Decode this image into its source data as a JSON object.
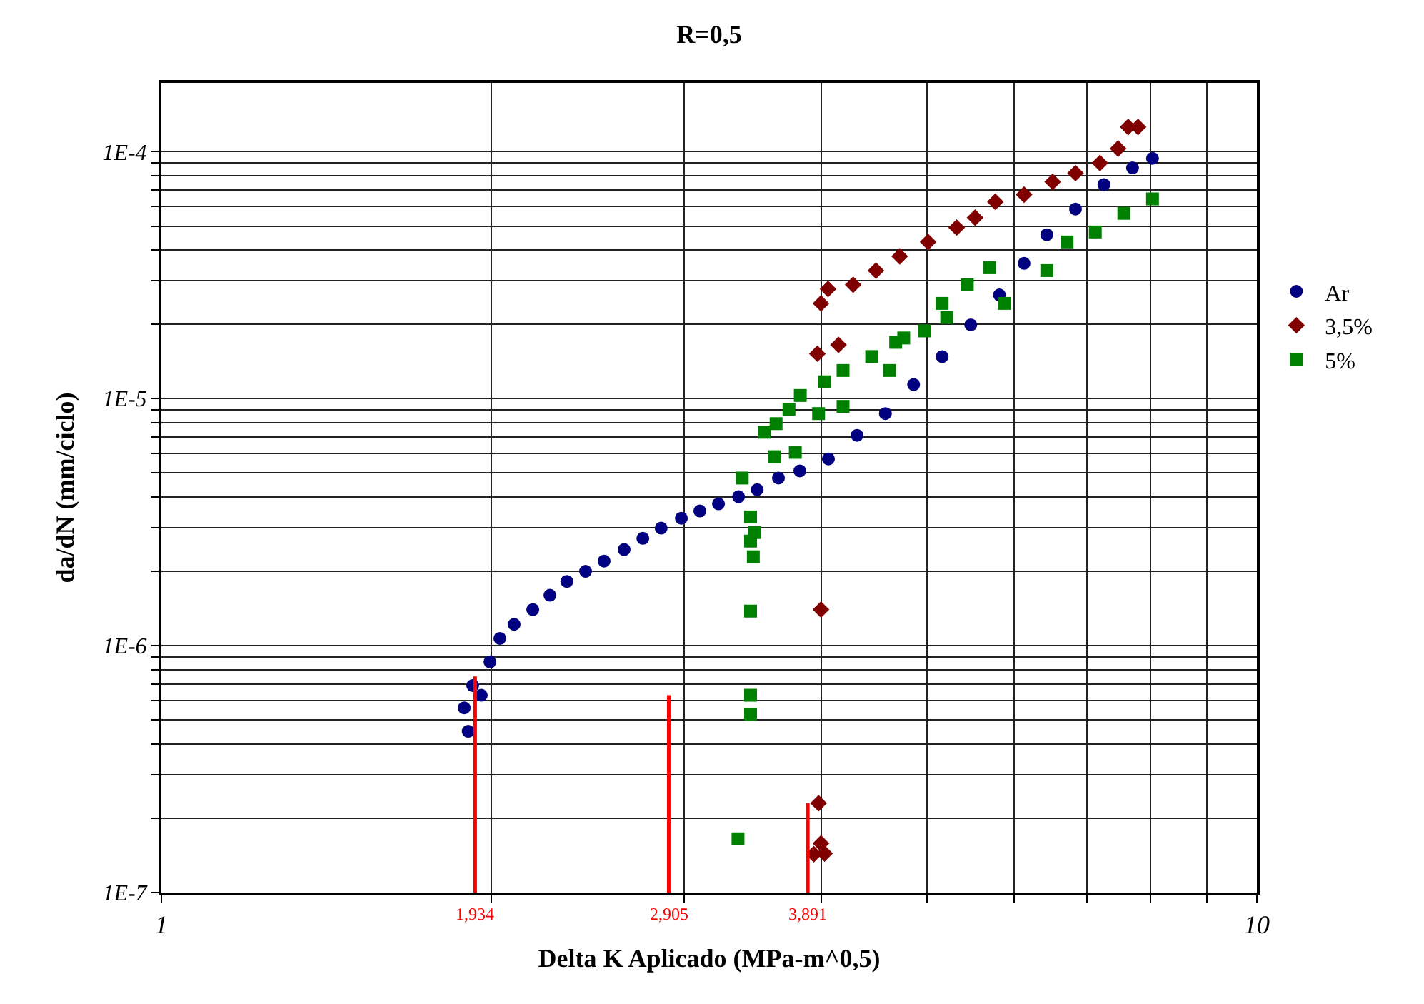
{
  "chart_data": {
    "type": "scatter",
    "title": "R=0,5",
    "xlabel": "Delta K Aplicado (MPa-m^0,5)",
    "ylabel": "da/dN (mm/ciclo)",
    "log": "xy",
    "grid": true,
    "legend": "right",
    "xlim": [
      1,
      10
    ],
    "ylim": [
      1e-07,
      0.00019
    ],
    "xticks": [
      1,
      {
        "value": 2,
        "label": null
      },
      {
        "value": 3,
        "label": null
      },
      {
        "value": 4,
        "label": null
      },
      {
        "value": 5,
        "label": null
      },
      {
        "value": 6,
        "label": null
      },
      {
        "value": 7,
        "label": null
      },
      {
        "value": 8,
        "label": null
      },
      {
        "value": 9,
        "label": null
      },
      10
    ],
    "yticks": [
      {
        "value": 1e-07,
        "label": "1E-7"
      },
      {
        "value": 2e-07,
        "label": null
      },
      {
        "value": 3e-07,
        "label": null
      },
      {
        "value": 4e-07,
        "label": null
      },
      {
        "value": 5e-07,
        "label": null
      },
      {
        "value": 6e-07,
        "label": null
      },
      {
        "value": 7e-07,
        "label": null
      },
      {
        "value": 8e-07,
        "label": null
      },
      {
        "value": 9e-07,
        "label": null
      },
      {
        "value": 1e-06,
        "label": "1E-6"
      },
      {
        "value": 2e-06,
        "label": null
      },
      {
        "value": 3e-06,
        "label": null
      },
      {
        "value": 4e-06,
        "label": null
      },
      {
        "value": 5e-06,
        "label": null
      },
      {
        "value": 6e-06,
        "label": null
      },
      {
        "value": 7e-06,
        "label": null
      },
      {
        "value": 8e-06,
        "label": null
      },
      {
        "value": 9e-06,
        "label": null
      },
      {
        "value": 1e-05,
        "label": "1E-5"
      },
      {
        "value": 2e-05,
        "label": null
      },
      {
        "value": 3e-05,
        "label": null
      },
      {
        "value": 4e-05,
        "label": null
      },
      {
        "value": 5e-05,
        "label": null
      },
      {
        "value": 6e-05,
        "label": null
      },
      {
        "value": 7e-05,
        "label": null
      },
      {
        "value": 8e-05,
        "label": null
      },
      {
        "value": 9e-05,
        "label": null
      },
      {
        "value": 0.0001,
        "label": "1E-4"
      }
    ],
    "series": [
      {
        "name": "Ar",
        "color": "#000080",
        "marker": "circle",
        "x": [
          1.89,
          1.906,
          1.924,
          1.959,
          1.995,
          2.037,
          2.099,
          2.183,
          2.263,
          2.345,
          2.439,
          2.536,
          2.645,
          2.751,
          2.859,
          2.983,
          3.101,
          3.225,
          3.364,
          3.498,
          3.658,
          3.826,
          4.063,
          4.315,
          4.58,
          4.86,
          5.16,
          5.48,
          5.82,
          6.13,
          6.43,
          6.83,
          7.25,
          7.7,
          8.03
        ],
        "values": [
          5.6e-07,
          4.5e-07,
          6.9e-07,
          6.3e-07,
          8.6e-07,
          1.07e-06,
          1.22e-06,
          1.4e-06,
          1.6e-06,
          1.82e-06,
          2e-06,
          2.2e-06,
          2.45e-06,
          2.72e-06,
          2.99e-06,
          3.28e-06,
          3.51e-06,
          3.75e-06,
          4.01e-06,
          4.28e-06,
          4.77e-06,
          5.1e-06,
          5.7e-06,
          7.1e-06,
          8.7e-06,
          1.14e-05,
          1.48e-05,
          1.99e-05,
          2.63e-05,
          3.53e-05,
          4.61e-05,
          5.86e-05,
          7.36e-05,
          8.6e-05,
          9.4e-05
        ]
      },
      {
        "name": "3,5%",
        "color": "#800000",
        "marker": "diamond",
        "x": [
          3.94,
          3.98,
          4.0,
          4.03,
          4.0,
          3.97,
          4.15,
          4.0,
          4.06,
          4.28,
          4.49,
          4.72,
          5.01,
          5.32,
          5.53,
          5.77,
          6.13,
          6.51,
          6.83,
          7.19,
          7.47,
          7.63,
          7.79
        ],
        "values": [
          1.43e-07,
          2.3e-07,
          1.58e-07,
          1.44e-07,
          1.4e-06,
          1.52e-05,
          1.65e-05,
          2.43e-05,
          2.78e-05,
          2.89e-05,
          3.3e-05,
          3.77e-05,
          4.31e-05,
          4.93e-05,
          5.41e-05,
          6.27e-05,
          6.7e-05,
          7.55e-05,
          8.19e-05,
          9e-05,
          0.000103,
          0.000126,
          0.000126
        ]
      },
      {
        "name": "5%",
        "color": "#008000",
        "marker": "square",
        "x": [
          3.36,
          3.45,
          3.45,
          3.45,
          3.47,
          3.45,
          3.48,
          3.45,
          3.39,
          3.63,
          3.55,
          3.64,
          3.79,
          3.83,
          3.74,
          3.98,
          4.19,
          4.03,
          4.19,
          4.45,
          4.62,
          4.68,
          4.76,
          4.97,
          5.21,
          5.16,
          5.44,
          5.7,
          5.88,
          6.43,
          6.71,
          7.12,
          7.56,
          8.03
        ],
        "values": [
          1.65e-07,
          5.27e-07,
          6.3e-07,
          1.38e-06,
          2.29e-06,
          2.65e-06,
          2.87e-06,
          3.32e-06,
          4.77e-06,
          5.82e-06,
          7.31e-06,
          7.92e-06,
          6.06e-06,
          1.03e-05,
          9.05e-06,
          8.7e-06,
          9.3e-06,
          1.17e-05,
          1.3e-05,
          1.48e-05,
          1.3e-05,
          1.69e-05,
          1.76e-05,
          1.88e-05,
          2.13e-05,
          2.43e-05,
          2.89e-05,
          3.39e-05,
          2.43e-05,
          3.3e-05,
          4.31e-05,
          4.73e-05,
          5.63e-05,
          6.44e-05
        ]
      },
      {
        "type": "line",
        "color": "#ff0000",
        "x": [
          1.934,
          1.934
        ],
        "values": [
          1e-07,
          7.5e-07
        ]
      },
      {
        "type": "line",
        "color": "#ff0000",
        "x": [
          2.905,
          2.905
        ],
        "values": [
          1e-07,
          6.3e-07
        ]
      },
      {
        "type": "line",
        "color": "#ff0000",
        "x": [
          3.891,
          3.891
        ],
        "values": [
          1e-07,
          2.3e-07
        ]
      }
    ],
    "annotations": [
      {
        "text": "1,934",
        "x": 1.934,
        "y": 1e-07
      },
      {
        "text": "2,905",
        "x": 2.905,
        "y": 1e-07
      },
      {
        "text": "3,891",
        "x": 3.891,
        "y": 1e-07
      }
    ]
  }
}
